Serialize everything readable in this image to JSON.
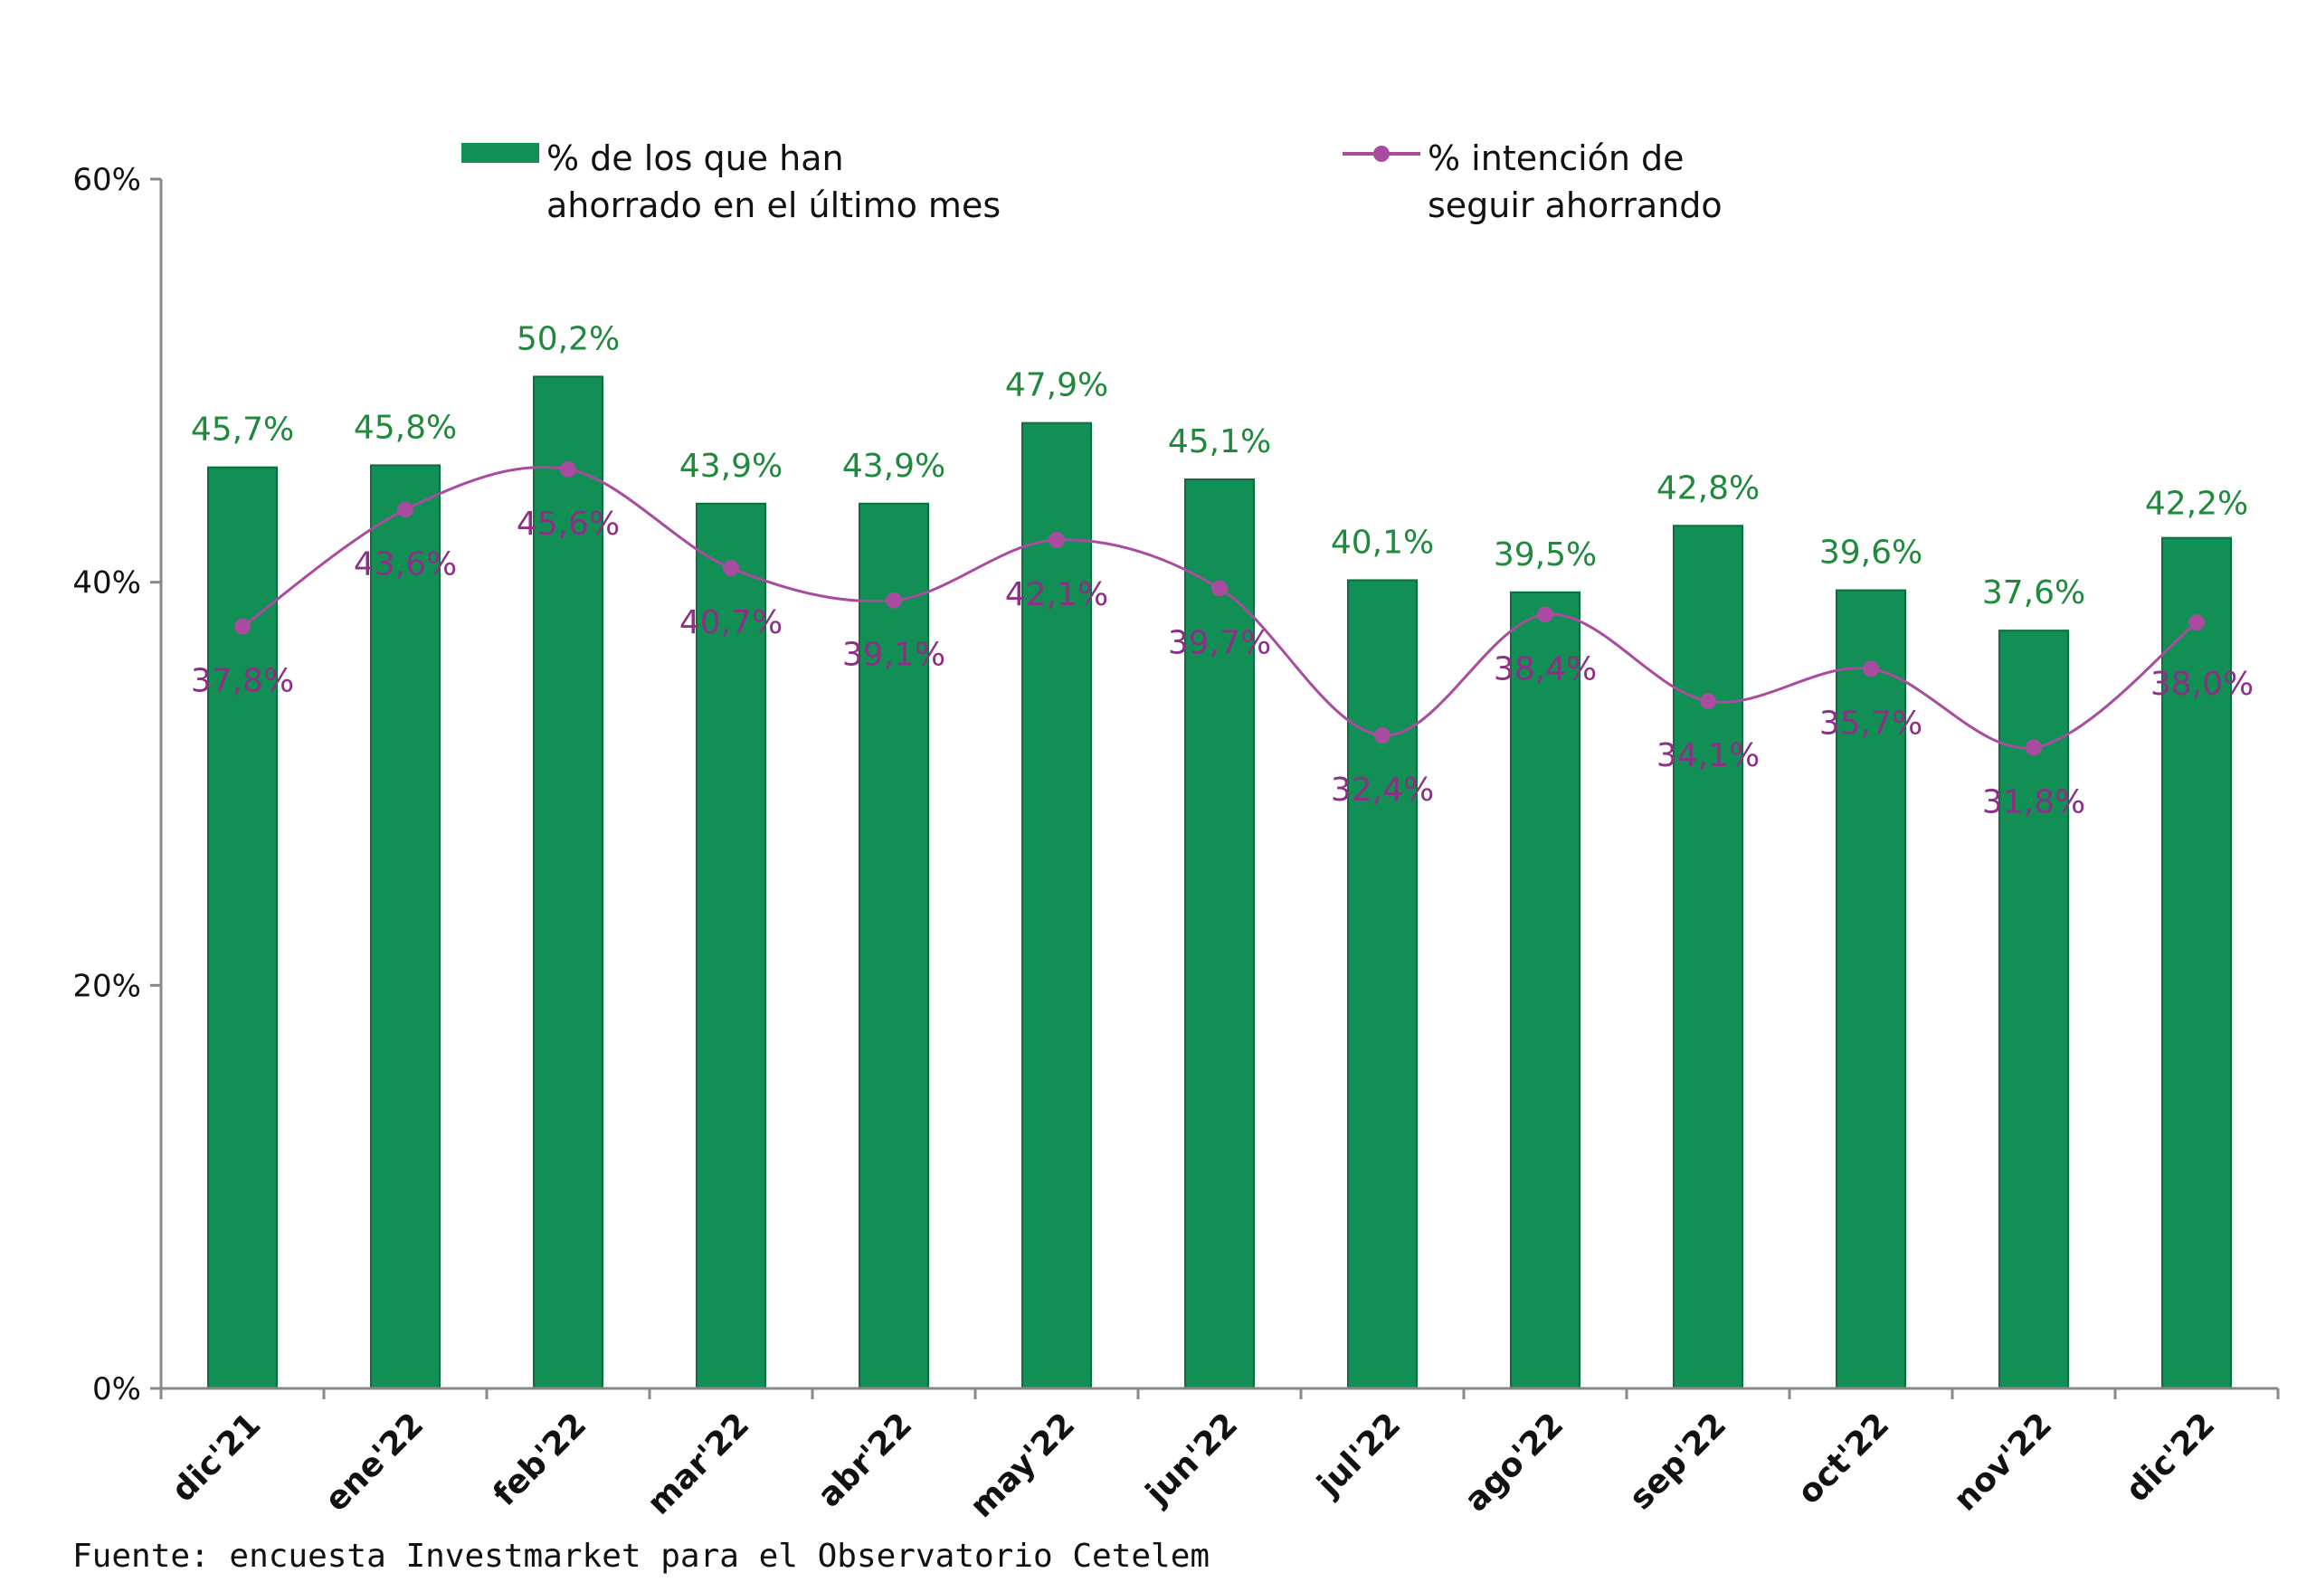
{
  "chart_data": {
    "type": "bar",
    "categories": [
      "dic'21",
      "ene'22",
      "feb'22",
      "mar'22",
      "abr'22",
      "may'22",
      "jun'22",
      "jul'22",
      "ago'22",
      "sep'22",
      "oct'22",
      "nov'22",
      "dic'22"
    ],
    "series": [
      {
        "name": "% de los que han ahorrado en el último mes",
        "type": "bar",
        "values": [
          45.7,
          45.8,
          50.2,
          43.9,
          43.9,
          47.9,
          45.1,
          40.1,
          39.5,
          42.8,
          39.6,
          37.6,
          42.2
        ],
        "labels": [
          "45,7%",
          "45,8%",
          "50,2%",
          "43,9%",
          "43,9%",
          "47,9%",
          "45,1%",
          "40,1%",
          "39,5%",
          "42,8%",
          "39,6%",
          "37,6%",
          "42,2%"
        ]
      },
      {
        "name": "% intención de seguir ahorrando",
        "type": "line",
        "values": [
          37.8,
          43.6,
          45.6,
          40.7,
          39.1,
          42.1,
          39.7,
          32.4,
          38.4,
          34.1,
          35.7,
          31.8,
          38.0
        ],
        "labels": [
          "37,8%",
          "43,6%",
          "45,6%",
          "40,7%",
          "39,1%",
          "42,1%",
          "39,7%",
          "32,4%",
          "38,4%",
          "34,1%",
          "35,7%",
          "31,8%",
          "38,0%"
        ]
      }
    ],
    "ylim": [
      0,
      60
    ],
    "yticks": [
      0,
      20,
      40,
      60
    ],
    "ytick_labels": [
      "0%",
      "20%",
      "40%",
      "60%"
    ],
    "legend": {
      "position": "top",
      "bar_lines": [
        "% de los que han",
        "ahorrado en el último mes"
      ],
      "line_lines": [
        "% intención de",
        "seguir ahorrando"
      ]
    },
    "colors": {
      "bar": "#128f55",
      "bar_label": "#1f8a3c",
      "line": "#a94b9f",
      "line_label": "#8e2f86"
    },
    "grid": false,
    "source": "Fuente: encuesta Investmarket para el Observatorio Cetelem"
  }
}
